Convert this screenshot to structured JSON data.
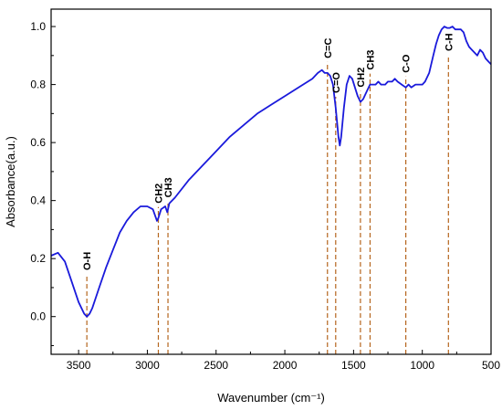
{
  "chart_data": {
    "type": "line",
    "title": "",
    "xlabel": "Wavenumber (cm⁻¹)",
    "ylabel": "Absorbance(a.u.)",
    "xlim": [
      3700,
      500
    ],
    "ylim": [
      -0.13,
      1.06
    ],
    "x_reversed": true,
    "grid": false,
    "x_ticks": [
      3500,
      3000,
      2500,
      2000,
      1500,
      1000,
      500
    ],
    "y_ticks": [
      0.0,
      0.2,
      0.4,
      0.6,
      0.8,
      1.0
    ],
    "x_tick_labels": [
      "3500",
      "3000",
      "2500",
      "2000",
      "1500",
      "1000",
      "500"
    ],
    "y_tick_labels": [
      "0.0",
      "0.2",
      "0.4",
      "0.6",
      "0.8",
      "1.0"
    ],
    "series": [
      {
        "color": "#1a1adb",
        "x": [
          3700,
          3650,
          3600,
          3550,
          3500,
          3460,
          3440,
          3420,
          3400,
          3350,
          3300,
          3250,
          3200,
          3150,
          3100,
          3050,
          3000,
          2960,
          2930,
          2920,
          2900,
          2870,
          2855,
          2840,
          2800,
          2700,
          2600,
          2500,
          2400,
          2300,
          2200,
          2100,
          2000,
          1900,
          1800,
          1760,
          1730,
          1710,
          1690,
          1670,
          1650,
          1630,
          1610,
          1600,
          1590,
          1570,
          1550,
          1530,
          1510,
          1490,
          1470,
          1450,
          1430,
          1400,
          1380,
          1360,
          1340,
          1320,
          1300,
          1270,
          1250,
          1220,
          1200,
          1180,
          1150,
          1120,
          1100,
          1080,
          1050,
          1000,
          980,
          950,
          920,
          900,
          880,
          860,
          840,
          820,
          800,
          780,
          760,
          740,
          720,
          700,
          680,
          660,
          640,
          620,
          600,
          580,
          560,
          540,
          520,
          500
        ],
        "y": [
          0.21,
          0.22,
          0.19,
          0.12,
          0.05,
          0.01,
          0.0,
          0.01,
          0.03,
          0.1,
          0.17,
          0.23,
          0.29,
          0.33,
          0.36,
          0.38,
          0.38,
          0.37,
          0.33,
          0.34,
          0.37,
          0.38,
          0.36,
          0.39,
          0.41,
          0.47,
          0.52,
          0.57,
          0.62,
          0.66,
          0.7,
          0.73,
          0.76,
          0.79,
          0.82,
          0.84,
          0.85,
          0.84,
          0.84,
          0.83,
          0.8,
          0.72,
          0.62,
          0.59,
          0.62,
          0.72,
          0.8,
          0.83,
          0.82,
          0.79,
          0.76,
          0.74,
          0.75,
          0.78,
          0.8,
          0.8,
          0.8,
          0.81,
          0.8,
          0.8,
          0.81,
          0.81,
          0.82,
          0.81,
          0.8,
          0.79,
          0.8,
          0.79,
          0.8,
          0.8,
          0.81,
          0.84,
          0.9,
          0.94,
          0.97,
          0.99,
          1.0,
          0.995,
          0.995,
          1.0,
          0.99,
          0.99,
          0.99,
          0.98,
          0.95,
          0.93,
          0.92,
          0.91,
          0.9,
          0.92,
          0.91,
          0.89,
          0.88,
          0.87
        ]
      }
    ],
    "peak_markers": [
      {
        "label": "O-H",
        "x": 3440
      },
      {
        "label": "CH2",
        "x": 2920
      },
      {
        "label": "CH3",
        "x": 2850
      },
      {
        "label": "C=C",
        "x": 1690
      },
      {
        "label": "C=O",
        "x": 1630
      },
      {
        "label": "CH2",
        "x": 1450
      },
      {
        "label": "CH3",
        "x": 1380
      },
      {
        "label": "C-O",
        "x": 1120
      },
      {
        "label": "C-H",
        "x": 810
      }
    ],
    "marker_color": "#b5651d"
  }
}
